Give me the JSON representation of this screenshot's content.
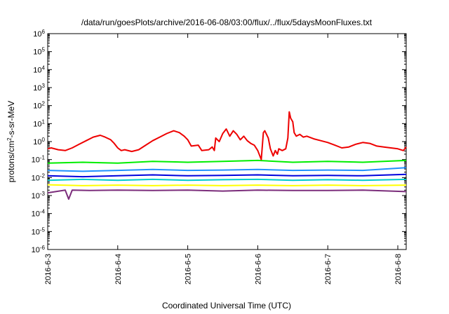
{
  "chart_data": {
    "type": "line",
    "title": "/data/run/goesPlots/archive/2016-06-08/03:00/flux/../flux/5daysMoonFluxes.txt",
    "xlabel": "Coordinated Universal Time (UTC)",
    "ylabel": {
      "base": "protons/cm",
      "sup": "2",
      "rest": "-s-sr-MeV"
    },
    "y_scale": "log",
    "ylim_exponent": [
      -6,
      6
    ],
    "y_tick_labels": [
      {
        "exp": 6,
        "base": "10",
        "sup": "6"
      },
      {
        "exp": 5,
        "base": "10",
        "sup": "5"
      },
      {
        "exp": 4,
        "base": "10",
        "sup": "4"
      },
      {
        "exp": 3,
        "base": "10",
        "sup": "3"
      },
      {
        "exp": 2,
        "base": "10",
        "sup": "2"
      },
      {
        "exp": 1,
        "base": "10",
        "sup": "1"
      },
      {
        "exp": 0,
        "base": "10",
        "sup": "0"
      },
      {
        "exp": -1,
        "base": "10",
        "sup": "-1"
      },
      {
        "exp": -2,
        "base": "10",
        "sup": "-2"
      },
      {
        "exp": -3,
        "base": "10",
        "sup": "-3"
      },
      {
        "exp": -4,
        "base": "10",
        "sup": "-4"
      },
      {
        "exp": -5,
        "base": "10",
        "sup": "-5"
      },
      {
        "exp": -6,
        "base": "10",
        "sup": "-6"
      }
    ],
    "xlim_days": [
      0,
      5.12
    ],
    "x_ticks": [
      {
        "day": 0,
        "label": "2016-6-3"
      },
      {
        "day": 1,
        "label": "2016-6-4"
      },
      {
        "day": 2,
        "label": "2016-6-5"
      },
      {
        "day": 3,
        "label": "2016-6-6"
      },
      {
        "day": 4,
        "label": "2016-6-7"
      },
      {
        "day": 5,
        "label": "2016-6-8"
      }
    ],
    "grid": false,
    "legend": "none",
    "series": [
      {
        "color": "#7b2d7b",
        "points": [
          [
            0,
            -2.85
          ],
          [
            0.25,
            -2.7
          ],
          [
            0.3,
            -3.2
          ],
          [
            0.35,
            -2.7
          ],
          [
            0.6,
            -2.72
          ],
          [
            1,
            -2.7
          ],
          [
            1.5,
            -2.72
          ],
          [
            2,
            -2.7
          ],
          [
            2.5,
            -2.75
          ],
          [
            3,
            -2.7
          ],
          [
            3.5,
            -2.72
          ],
          [
            4,
            -2.72
          ],
          [
            4.5,
            -2.7
          ],
          [
            5.12,
            -2.78
          ]
        ]
      },
      {
        "color": "#ffff00",
        "points": [
          [
            0,
            -2.4
          ],
          [
            0.5,
            -2.45
          ],
          [
            1,
            -2.42
          ],
          [
            1.5,
            -2.45
          ],
          [
            2,
            -2.42
          ],
          [
            2.5,
            -2.45
          ],
          [
            3,
            -2.42
          ],
          [
            3.5,
            -2.45
          ],
          [
            4,
            -2.42
          ],
          [
            4.5,
            -2.45
          ],
          [
            5.12,
            -2.42
          ]
        ]
      },
      {
        "color": "#00cccc",
        "points": [
          [
            0,
            -2.15
          ],
          [
            0.5,
            -2.1
          ],
          [
            1,
            -2.15
          ],
          [
            1.5,
            -2.1
          ],
          [
            2,
            -2.15
          ],
          [
            2.5,
            -2.12
          ],
          [
            3,
            -2.1
          ],
          [
            3.5,
            -2.15
          ],
          [
            4,
            -2.12
          ],
          [
            4.5,
            -2.15
          ],
          [
            5.12,
            -2.1
          ]
        ]
      },
      {
        "color": "#0000dd",
        "points": [
          [
            0,
            -1.9
          ],
          [
            0.5,
            -1.95
          ],
          [
            1,
            -1.9
          ],
          [
            1.5,
            -1.85
          ],
          [
            2,
            -1.9
          ],
          [
            2.5,
            -1.88
          ],
          [
            3,
            -1.85
          ],
          [
            3.5,
            -1.9
          ],
          [
            4,
            -1.88
          ],
          [
            4.5,
            -1.9
          ],
          [
            5.12,
            -1.82
          ]
        ]
      },
      {
        "color": "#1e90ff",
        "points": [
          [
            0,
            -1.6
          ],
          [
            0.5,
            -1.65
          ],
          [
            1,
            -1.6
          ],
          [
            1.5,
            -1.55
          ],
          [
            2,
            -1.6
          ],
          [
            2.5,
            -1.58
          ],
          [
            3,
            -1.55
          ],
          [
            3.5,
            -1.6
          ],
          [
            4,
            -1.58
          ],
          [
            4.5,
            -1.6
          ],
          [
            5.12,
            -1.45
          ]
        ]
      },
      {
        "color": "#00ee00",
        "points": [
          [
            0,
            -1.2
          ],
          [
            0.5,
            -1.15
          ],
          [
            1,
            -1.2
          ],
          [
            1.5,
            -1.1
          ],
          [
            2,
            -1.15
          ],
          [
            2.5,
            -1.1
          ],
          [
            3,
            -1.05
          ],
          [
            3.5,
            -1.15
          ],
          [
            4,
            -1.1
          ],
          [
            4.5,
            -1.15
          ],
          [
            5.12,
            -1.05
          ]
        ]
      },
      {
        "color": "#ee0000",
        "points": [
          [
            0,
            -0.4
          ],
          [
            0.05,
            -0.35
          ],
          [
            0.15,
            -0.45
          ],
          [
            0.25,
            -0.5
          ],
          [
            0.35,
            -0.35
          ],
          [
            0.45,
            -0.15
          ],
          [
            0.55,
            0.05
          ],
          [
            0.65,
            0.25
          ],
          [
            0.75,
            0.35
          ],
          [
            0.82,
            0.25
          ],
          [
            0.9,
            0.1
          ],
          [
            0.95,
            -0.1
          ],
          [
            1.0,
            -0.35
          ],
          [
            1.05,
            -0.5
          ],
          [
            1.1,
            -0.45
          ],
          [
            1.2,
            -0.55
          ],
          [
            1.3,
            -0.45
          ],
          [
            1.4,
            -0.2
          ],
          [
            1.5,
            0.05
          ],
          [
            1.6,
            0.25
          ],
          [
            1.7,
            0.45
          ],
          [
            1.8,
            0.6
          ],
          [
            1.88,
            0.5
          ],
          [
            1.95,
            0.3
          ],
          [
            2.0,
            0.1
          ],
          [
            2.05,
            -0.25
          ],
          [
            2.15,
            -0.2
          ],
          [
            2.2,
            -0.5
          ],
          [
            2.3,
            -0.45
          ],
          [
            2.35,
            -0.3
          ],
          [
            2.38,
            -0.5
          ],
          [
            2.4,
            0.2
          ],
          [
            2.45,
            0.0
          ],
          [
            2.5,
            0.45
          ],
          [
            2.55,
            0.7
          ],
          [
            2.6,
            0.3
          ],
          [
            2.65,
            0.6
          ],
          [
            2.7,
            0.4
          ],
          [
            2.75,
            0.1
          ],
          [
            2.8,
            0.3
          ],
          [
            2.85,
            0.05
          ],
          [
            2.9,
            -0.1
          ],
          [
            2.95,
            -0.2
          ],
          [
            3.0,
            -0.5
          ],
          [
            3.05,
            -1.0
          ],
          [
            3.08,
            0.5
          ],
          [
            3.1,
            0.6
          ],
          [
            3.15,
            0.2
          ],
          [
            3.18,
            -0.4
          ],
          [
            3.22,
            -0.8
          ],
          [
            3.25,
            -0.5
          ],
          [
            3.28,
            -0.7
          ],
          [
            3.3,
            -0.4
          ],
          [
            3.35,
            -0.5
          ],
          [
            3.4,
            -0.4
          ],
          [
            3.43,
            0.2
          ],
          [
            3.45,
            1.65
          ],
          [
            3.47,
            1.3
          ],
          [
            3.5,
            1.1
          ],
          [
            3.52,
            0.5
          ],
          [
            3.55,
            0.3
          ],
          [
            3.6,
            0.4
          ],
          [
            3.65,
            0.25
          ],
          [
            3.7,
            0.3
          ],
          [
            3.8,
            0.15
          ],
          [
            3.9,
            0.05
          ],
          [
            4.0,
            -0.05
          ],
          [
            4.1,
            -0.2
          ],
          [
            4.2,
            -0.35
          ],
          [
            4.3,
            -0.3
          ],
          [
            4.4,
            -0.15
          ],
          [
            4.5,
            -0.05
          ],
          [
            4.6,
            -0.1
          ],
          [
            4.7,
            -0.25
          ],
          [
            4.8,
            -0.3
          ],
          [
            4.9,
            -0.35
          ],
          [
            5.0,
            -0.4
          ],
          [
            5.08,
            -0.5
          ],
          [
            5.12,
            -0.3
          ]
        ]
      }
    ]
  }
}
